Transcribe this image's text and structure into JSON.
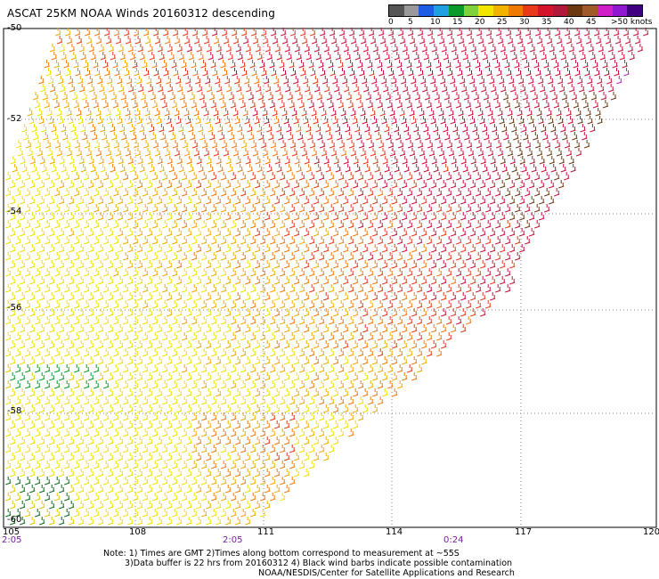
{
  "title": "ASCAT 25KM NOAA Winds 20160312 descending",
  "scale": {
    "colors": [
      "#555555",
      "#999999",
      "#1e5ce6",
      "#1fa0e0",
      "#0a9a2a",
      "#7fd23a",
      "#f2e600",
      "#f0b400",
      "#f07a00",
      "#e83a1a",
      "#d4142a",
      "#b0183c",
      "#6b3810",
      "#a05a2a",
      "#d01ec8",
      "#9018d0",
      "#400080"
    ],
    "labels": [
      "0",
      "5",
      "10",
      "15",
      "20",
      "25",
      "30",
      "35",
      "40",
      "45",
      ">50 knots"
    ]
  },
  "axes": {
    "lat_labels": [
      "-50",
      "-52",
      "-54",
      "-56",
      "-58",
      "-60"
    ],
    "lon_labels": [
      "105",
      "108",
      "111",
      "114",
      "117",
      "120"
    ],
    "time_labels": [
      "2:05",
      "2:05",
      "0:24"
    ]
  },
  "notes": {
    "line1": "Note: 1) Times are GMT 2)Times along bottom correspond to measurement at ~55S",
    "line2": "3)Data buffer is 22 hrs from 20160312 4) Black wind barbs indicate possible contamination",
    "line3": "NOAA/NESDIS/Center for Satellite Applications and Research"
  }
}
